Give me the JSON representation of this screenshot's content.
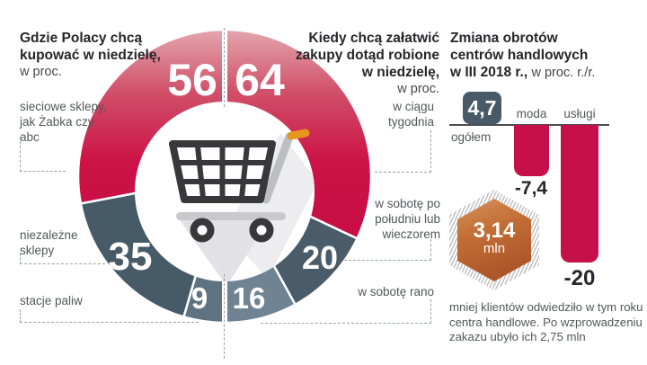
{
  "left_header": {
    "lines": [
      "Gdzie Polacy chcą",
      "kupować w niedzielę,"
    ],
    "unit": "w proc."
  },
  "right_header": {
    "lines": [
      "Kiedy chcą załatwić",
      "zakupy dotąd robione",
      "w niedzielę,"
    ],
    "unit": "w proc."
  },
  "panel_header": {
    "lines": [
      "Zmiana obrotów",
      "centrów handlowych"
    ],
    "bold3": "w III 2018 r.,",
    "unit": "w proc. r./r."
  },
  "donut_labels": {
    "sieciowe": [
      "sieciowe sklepy,",
      "jak Żabka czy",
      "abc"
    ],
    "niezalezne": [
      "niezależne",
      "sklepy"
    ],
    "stacje": [
      "stacje paliw"
    ],
    "tygodnia": [
      "w ciągu",
      "tygodnia"
    ],
    "sobota_pm": [
      "w sobotę po",
      "południu lub",
      "wieczorem"
    ],
    "sobota_rano": [
      "w sobotę rano"
    ]
  },
  "colors": {
    "crimson": "#c90f45",
    "crimson_light": "#e3a6ad",
    "dark_slate": "#475a68",
    "dark_slate2": "#4a5c6a",
    "mid_slate": "#5e7282",
    "light_slate": "#6f8392",
    "bar_red": "#c6104a",
    "badge_slate": "#485a68",
    "hex_orange": "#bf6531",
    "cart_dark": "#38383c",
    "cart_gray": "#bcbfc2",
    "cart_orange": "#e8951f"
  },
  "chart_data": [
    {
      "type": "pie",
      "subtype": "half-donut-comparison",
      "title_left": "Gdzie Polacy chcą kupować w niedzielę, w proc.",
      "title_right": "Kiedy chcą załatwić zakupy dotąd robione w niedzielę, w proc.",
      "left": [
        {
          "label": "sieciowe sklepy, jak Żabka czy abc",
          "value": 56,
          "color": "#c90f45",
          "gradient": true
        },
        {
          "label": "niezależne sklepy",
          "value": 35,
          "color": "#475a68",
          "gradient": false
        },
        {
          "label": "stacje paliw",
          "value": 9,
          "color": "#5e7282",
          "gradient": false
        }
      ],
      "right": [
        {
          "label": "w ciągu tygodnia",
          "value": 64,
          "color": "#c90f45",
          "gradient": true
        },
        {
          "label": "w sobotę po południu lub wieczorem",
          "value": 20,
          "color": "#4a5c6a",
          "gradient": false
        },
        {
          "label": "w sobotę rano",
          "value": 16,
          "color": "#6f8392",
          "gradient": false
        }
      ]
    },
    {
      "type": "bar",
      "title": "Zmiana obrotów centrów handlowych w III 2018 r., w proc. r./r.",
      "categories": [
        "ogółem",
        "moda",
        "usługi"
      ],
      "values": [
        4.7,
        -7.4,
        -20
      ],
      "value_labels": [
        "4,7",
        "-7,4",
        "-20"
      ],
      "ylim": [
        -22,
        6
      ],
      "badge": {
        "value": "3,14",
        "unit": "mln"
      },
      "note": "mniej klientów odwiedziło w tym roku centra handlowe. Po wzprowadzeniu zakazu ubyło ich 2,75 mln"
    }
  ]
}
